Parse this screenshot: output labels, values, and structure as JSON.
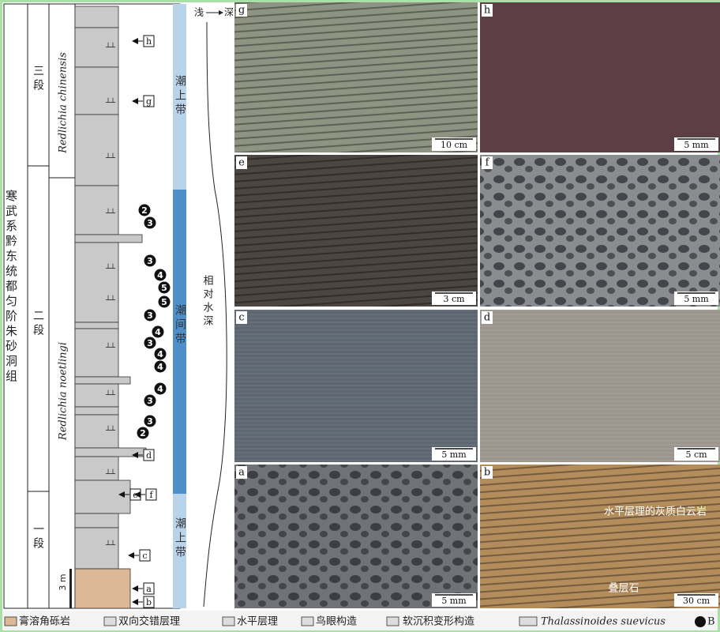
{
  "column": {
    "formation": "寒武系黔东统都匀阶朱砂洞组",
    "members": [
      "三段",
      "二段",
      "一段"
    ],
    "biozones": [
      "Redlichia chinensis",
      "Redlichia noetlingi"
    ],
    "scale": "3 m",
    "samples": [
      "h",
      "g",
      "d",
      "e",
      "f",
      "c",
      "a",
      "b"
    ],
    "bioturbation": [
      2,
      3,
      3,
      4,
      5,
      5,
      3,
      4,
      3,
      4,
      4,
      4,
      3,
      3,
      2
    ],
    "depth_shallow": "浅",
    "depth_deep": "深",
    "depth_label": "相对水深",
    "facies": [
      "潮上带",
      "潮间带",
      "潮上带"
    ]
  },
  "photos": [
    {
      "label": "g",
      "scale": "10 cm"
    },
    {
      "label": "h",
      "scale": "5 mm"
    },
    {
      "label": "e",
      "scale": "3 cm"
    },
    {
      "label": "f",
      "scale": "5 mm"
    },
    {
      "label": "c",
      "scale": "5 mm"
    },
    {
      "label": "d",
      "scale": "5 cm"
    },
    {
      "label": "a",
      "scale": "5 mm"
    },
    {
      "label": "b",
      "scale": "30 cm",
      "notes": [
        "水平层理的灰质白云岩",
        "叠层石"
      ]
    }
  ],
  "legend": [
    "膏溶角砾岩",
    "双向交错层理",
    "水平层理",
    "鸟眼构造",
    "软沉积变形构造",
    "Thalassinoides suevicus",
    "B"
  ]
}
